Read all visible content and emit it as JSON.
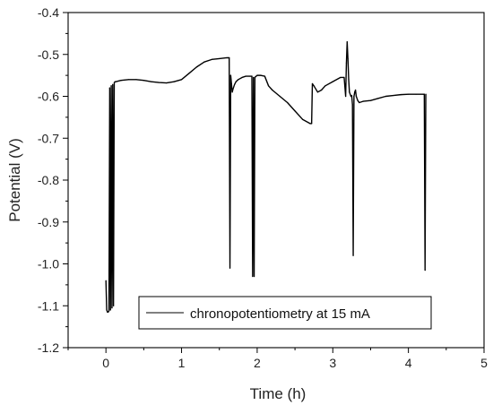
{
  "chart_data": {
    "type": "line",
    "xlabel": "Time (h)",
    "ylabel": "Potential (V)",
    "xlim": [
      -0.5,
      5
    ],
    "ylim": [
      -1.2,
      -0.4
    ],
    "x_ticks": [
      0,
      1,
      2,
      3,
      4,
      5
    ],
    "x_tick_labels": [
      "0",
      "1",
      "2",
      "3",
      "4",
      "5"
    ],
    "y_ticks": [
      -1.2,
      -1.1,
      -1.0,
      -0.9,
      -0.8,
      -0.7,
      -0.6,
      -0.5,
      -0.4
    ],
    "y_tick_labels": [
      "-1.2",
      "-1.1",
      "-1.0",
      "-0.9",
      "-0.8",
      "-0.7",
      "-0.6",
      "-0.5",
      "-0.4"
    ],
    "grid": false,
    "legend_position": "bottom-center",
    "series": [
      {
        "name": "chronopotentiometry at 15 mA",
        "color": "#000000",
        "x": [
          0.0,
          0.01,
          0.02,
          0.03,
          0.04,
          0.05,
          0.06,
          0.07,
          0.08,
          0.09,
          0.1,
          0.11,
          0.12,
          0.13,
          0.2,
          0.3,
          0.4,
          0.5,
          0.6,
          0.7,
          0.8,
          0.9,
          1.0,
          1.1,
          1.2,
          1.3,
          1.4,
          1.5,
          1.6,
          1.63,
          1.64,
          1.65,
          1.66,
          1.67,
          1.68,
          1.7,
          1.72,
          1.75,
          1.8,
          1.85,
          1.9,
          1.93,
          1.94,
          1.95,
          1.96,
          1.97,
          1.98,
          2.0,
          2.05,
          2.1,
          2.15,
          2.2,
          2.3,
          2.4,
          2.5,
          2.6,
          2.7,
          2.72,
          2.73,
          2.75,
          2.8,
          2.85,
          2.9,
          3.0,
          3.1,
          3.15,
          3.17,
          3.18,
          3.19,
          3.2,
          3.21,
          3.22,
          3.24,
          3.25,
          3.26,
          3.27,
          3.28,
          3.29,
          3.3,
          3.31,
          3.33,
          3.35,
          3.4,
          3.5,
          3.6,
          3.7,
          3.8,
          3.9,
          4.0,
          4.1,
          4.2,
          4.21,
          4.22,
          4.23
        ],
        "y": [
          -1.04,
          -1.11,
          -1.115,
          -1.115,
          -1.112,
          -0.58,
          -1.11,
          -0.575,
          -1.105,
          -0.572,
          -1.1,
          -0.568,
          -0.565,
          -0.565,
          -0.562,
          -0.56,
          -0.56,
          -0.562,
          -0.565,
          -0.567,
          -0.568,
          -0.565,
          -0.56,
          -0.545,
          -0.53,
          -0.518,
          -0.512,
          -0.51,
          -0.508,
          -0.508,
          -1.01,
          -0.55,
          -0.57,
          -0.59,
          -0.583,
          -0.572,
          -0.565,
          -0.56,
          -0.555,
          -0.552,
          -0.552,
          -0.552,
          -1.03,
          -0.555,
          -1.03,
          -0.555,
          -0.553,
          -0.55,
          -0.55,
          -0.552,
          -0.575,
          -0.585,
          -0.6,
          -0.615,
          -0.635,
          -0.655,
          -0.665,
          -0.665,
          -0.57,
          -0.575,
          -0.59,
          -0.585,
          -0.575,
          -0.565,
          -0.555,
          -0.555,
          -0.6,
          -0.52,
          -0.47,
          -0.51,
          -0.56,
          -0.59,
          -0.6,
          -0.598,
          -0.62,
          -0.98,
          -0.6,
          -0.59,
          -0.585,
          -0.6,
          -0.61,
          -0.615,
          -0.612,
          -0.61,
          -0.605,
          -0.6,
          -0.598,
          -0.596,
          -0.595,
          -0.595,
          -0.595,
          -0.595,
          -1.015,
          -0.595
        ]
      }
    ]
  }
}
